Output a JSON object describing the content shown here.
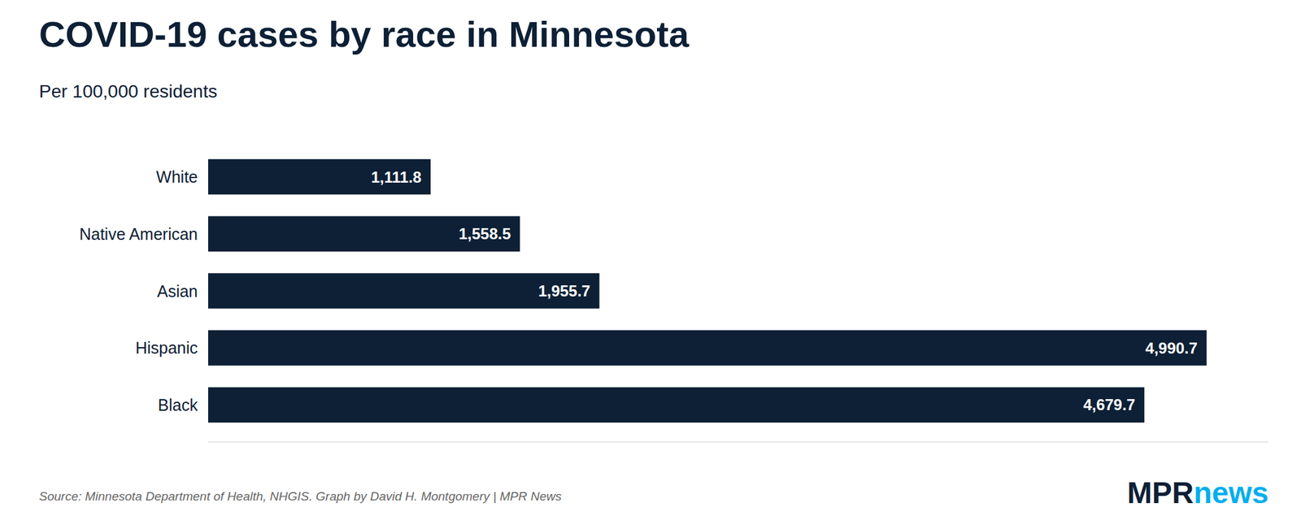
{
  "chart_data": {
    "type": "bar",
    "orientation": "horizontal",
    "title": "COVID-19 cases by race in Minnesota",
    "subtitle": "Per 100,000 residents",
    "categories": [
      "White",
      "Native American",
      "Asian",
      "Hispanic",
      "Black"
    ],
    "values": [
      1111.8,
      1558.5,
      1955.7,
      4990.7,
      4679.7
    ],
    "value_labels": [
      "1,111.8",
      "1,558.5",
      "1,955.7",
      "4,990.7",
      "4,679.7"
    ],
    "data_labels": true,
    "color": "#0d2035",
    "xlim": [
      0,
      5300
    ],
    "tick_labels": "y",
    "grid": false,
    "annotations": [
      {
        "text": "Source: Minnesota Department of Health, NHGIS. Graph by David H. Montgomery | MPR News",
        "color": "#666666"
      },
      {
        "text": "MPR",
        "color": "#0d2035"
      },
      {
        "text": "news",
        "color": "#00aeef"
      }
    ]
  }
}
